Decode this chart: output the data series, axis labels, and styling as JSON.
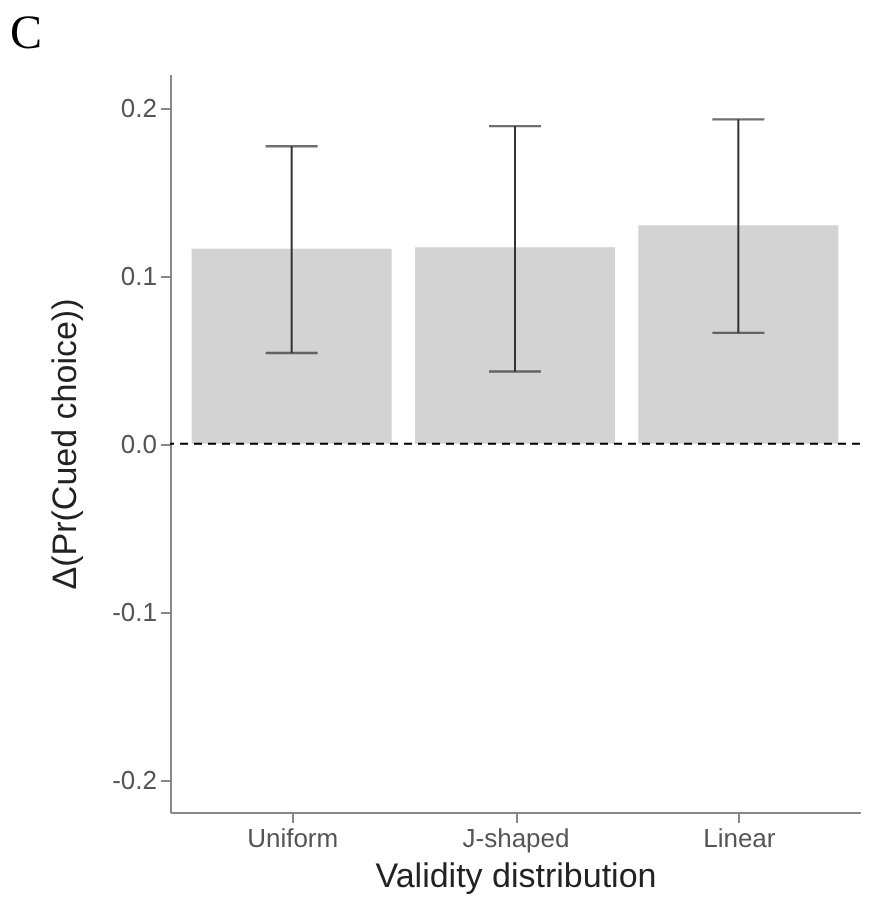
{
  "chart_data": {
    "type": "bar",
    "title": "C",
    "xlabel": "Validity distribution",
    "ylabel": "Δ(Pr(Cued choice))",
    "categories": [
      "Uniform",
      "J-shaped",
      "Linear"
    ],
    "values": [
      0.116,
      0.117,
      0.13
    ],
    "color": "#d3d3d3",
    "errors": [
      [
        0.054,
        0.177
      ],
      [
        0.043,
        0.189
      ],
      [
        0.066,
        0.193
      ]
    ],
    "ylim": [
      -0.219,
      0.22
    ],
    "yticks": [
      {
        "value": -0.2,
        "label": "-0.2"
      },
      {
        "value": -0.1,
        "label": "-0.1"
      },
      {
        "value": 0,
        "label": "0.0"
      },
      {
        "value": 0.1,
        "label": "0.1"
      },
      {
        "value": 0.2,
        "label": "0.2"
      }
    ],
    "ref_lines": [
      {
        "axis": "y",
        "value": 0,
        "color": "#000000",
        "line_style": "dashed"
      }
    ],
    "grid": false
  }
}
